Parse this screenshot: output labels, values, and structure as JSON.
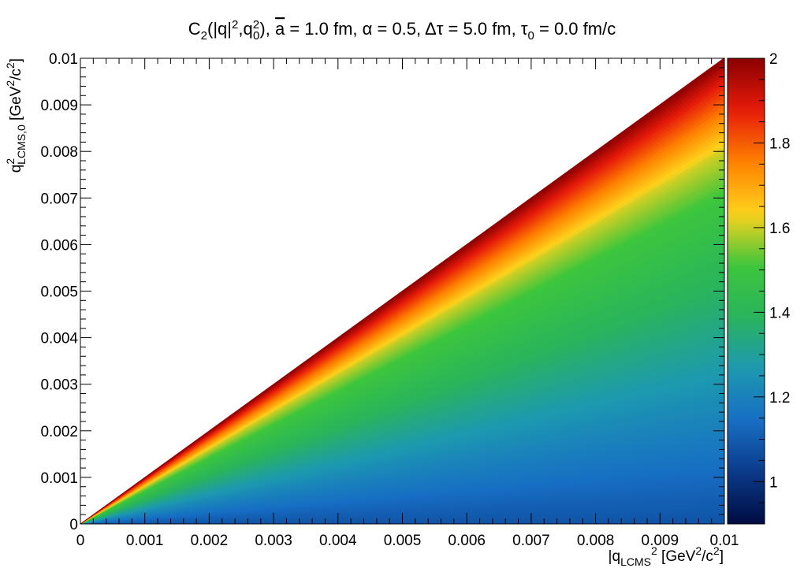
{
  "chart_data": {
    "type": "heatmap",
    "title": {
      "prefix": "C",
      "prefix_sub": "2",
      "args_open": "(|q|",
      "args_sup": "2",
      "args_mid": ",q",
      "args_mid_sup": "2",
      "args_mid_sub": "0",
      "args_close": "),",
      "abar": "a",
      "abar_rest": " = 1.0 fm, α = 0.5, Δτ = 5.0 fm, τ",
      "tau_sub": "0",
      "tau_rest": " = 0.0 fm/c"
    },
    "xlabel": {
      "main": "|q",
      "sub": "LCMS",
      "sup": "2",
      "unit_open": " [GeV",
      "unit_sup1": "2",
      "unit_mid": "/c",
      "unit_sup2": "2",
      "unit_close": "]"
    },
    "ylabel": {
      "main": "q",
      "sup": "2",
      "sub": "LCMS,0",
      "unit_open": " [GeV",
      "unit_sup1": "2",
      "unit_mid": "/c",
      "unit_sup2": "2",
      "unit_close": "]"
    },
    "xlim": [
      0,
      0.01
    ],
    "ylim": [
      0,
      0.01
    ],
    "zlim": [
      0.9,
      2.0
    ],
    "x_ticks": [
      "0",
      "0.001",
      "0.002",
      "0.003",
      "0.004",
      "0.005",
      "0.006",
      "0.007",
      "0.008",
      "0.009",
      "0.01"
    ],
    "y_ticks": [
      "0",
      "0.001",
      "0.002",
      "0.003",
      "0.004",
      "0.005",
      "0.006",
      "0.007",
      "0.008",
      "0.009",
      "0.01"
    ],
    "z_ticks": [
      "1",
      "1.2",
      "1.4",
      "1.6",
      "1.8",
      "2"
    ],
    "x_tick_values": [
      0,
      0.001,
      0.002,
      0.003,
      0.004,
      0.005,
      0.006,
      0.007,
      0.008,
      0.009,
      0.01
    ],
    "y_tick_values": [
      0,
      0.001,
      0.002,
      0.003,
      0.004,
      0.005,
      0.006,
      0.007,
      0.008,
      0.009,
      0.01
    ],
    "z_tick_values": [
      1.0,
      1.2,
      1.4,
      1.6,
      1.8,
      2.0
    ],
    "region": "y <= x",
    "value_along_diagonal": [
      {
        "y_over_x": 0.0,
        "z": 1.08
      },
      {
        "y_over_x": 0.25,
        "z": 1.22
      },
      {
        "y_over_x": 0.5,
        "z": 1.38
      },
      {
        "y_over_x": 0.7,
        "z": 1.5
      },
      {
        "y_over_x": 0.8,
        "z": 1.6
      },
      {
        "y_over_x": 0.88,
        "z": 1.75
      },
      {
        "y_over_x": 0.95,
        "z": 1.88
      },
      {
        "y_over_x": 1.0,
        "z": 2.0
      }
    ],
    "colorscale": [
      "#000c40",
      "#0b3a8a",
      "#176ec4",
      "#1d99b0",
      "#2ab45c",
      "#3dc63c",
      "#ffd21c",
      "#ff8000",
      "#e61a0a",
      "#8a0000"
    ],
    "grid": false
  }
}
